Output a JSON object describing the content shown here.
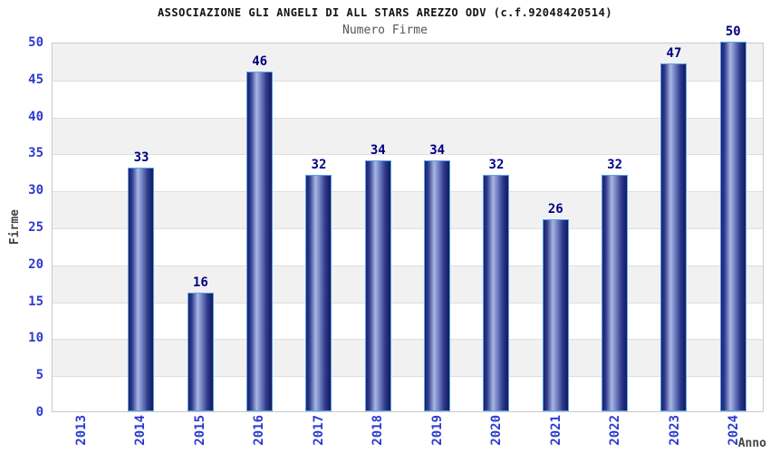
{
  "chart_data": {
    "type": "bar",
    "title": "ASSOCIAZIONE GLI ANGELI DI ALL STARS AREZZO ODV (c.f.92048420514)",
    "subtitle": "Numero Firme",
    "xlabel": "Anno",
    "ylabel": "Firme",
    "categories": [
      "2013",
      "2014",
      "2015",
      "2016",
      "2017",
      "2018",
      "2019",
      "2020",
      "2021",
      "2022",
      "2023",
      "2024"
    ],
    "values": [
      0,
      33,
      16,
      46,
      32,
      34,
      34,
      32,
      26,
      32,
      47,
      50
    ],
    "ylim": [
      0,
      50
    ],
    "ytick_step": 5,
    "legend": "none",
    "grid": "alternating horizontal gray bands every 5 units",
    "colors": {
      "bar_dark": "#1c2268",
      "bar_highlight": "#a9b6e2",
      "bar_border": "#58a4f0",
      "tick_label": "#2d3bcf",
      "value_label": "#000080",
      "band_gray": "#f1f1f1",
      "gridline": "#dedede",
      "plot_border": "#c9c9c9",
      "title_color": "#111118",
      "subtitle_color": "#555555",
      "axis_title_color": "#444444"
    }
  }
}
